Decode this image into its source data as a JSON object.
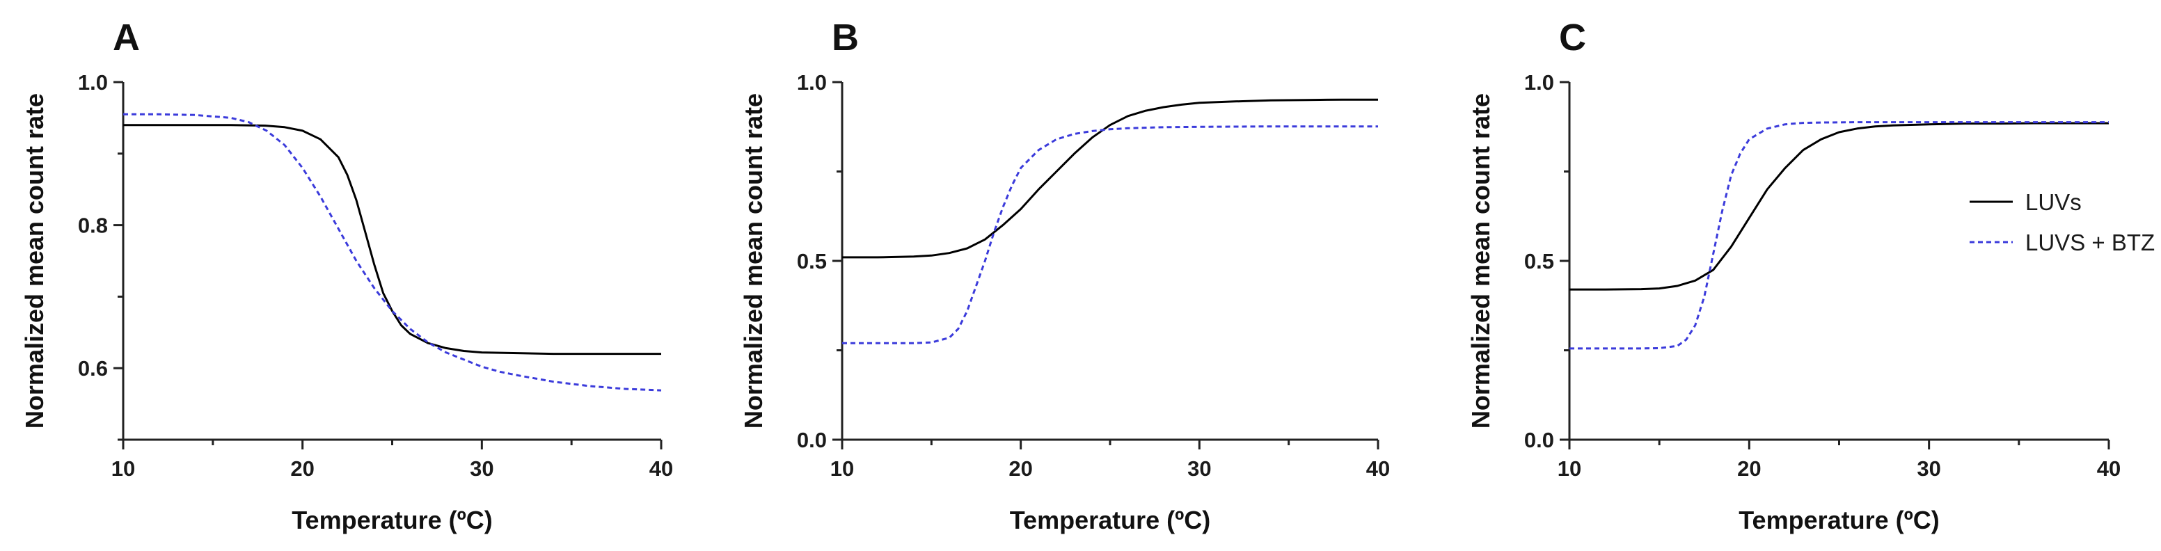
{
  "chart_data": [
    {
      "panel": "A",
      "type": "line",
      "xlabel": "Temperature (ºC)",
      "ylabel": "Normalized mean count rate",
      "xlim": [
        10,
        40
      ],
      "ylim": [
        0.5,
        1.0
      ],
      "xticks": [
        10,
        20,
        30,
        40
      ],
      "yticks": [
        0.6,
        0.8,
        1.0
      ],
      "ytick_labels": [
        "0.6",
        "0.8",
        "1.0"
      ],
      "xtick_labels": [
        "10",
        "20",
        "30",
        "40"
      ],
      "series": [
        {
          "name": "LUVs",
          "color": "#000000",
          "dash": "solid",
          "x": [
            10,
            12,
            14,
            16,
            18,
            19,
            20,
            21,
            22,
            22.5,
            23,
            23.5,
            24,
            24.5,
            25,
            25.5,
            26,
            27,
            28,
            29,
            30,
            32,
            34,
            36,
            38,
            40
          ],
          "y": [
            0.94,
            0.94,
            0.94,
            0.94,
            0.939,
            0.937,
            0.932,
            0.92,
            0.895,
            0.87,
            0.835,
            0.79,
            0.745,
            0.705,
            0.68,
            0.66,
            0.648,
            0.635,
            0.628,
            0.624,
            0.622,
            0.621,
            0.62,
            0.62,
            0.62,
            0.62
          ]
        },
        {
          "name": "LUVS + BTZ",
          "color": "#3b3bdb",
          "dash": "dashed",
          "x": [
            10,
            12,
            14,
            16,
            17,
            18,
            19,
            20,
            21,
            22,
            23,
            24,
            25,
            26,
            27,
            28,
            29,
            30,
            31,
            32,
            34,
            36,
            38,
            40
          ],
          "y": [
            0.955,
            0.955,
            0.954,
            0.95,
            0.944,
            0.932,
            0.912,
            0.88,
            0.84,
            0.795,
            0.75,
            0.712,
            0.68,
            0.655,
            0.636,
            0.622,
            0.612,
            0.602,
            0.595,
            0.59,
            0.581,
            0.575,
            0.571,
            0.569
          ]
        }
      ]
    },
    {
      "panel": "B",
      "type": "line",
      "xlabel": "Temperature (ºC)",
      "ylabel": "Normalized mean count rate",
      "xlim": [
        10,
        40
      ],
      "ylim": [
        0.0,
        1.0
      ],
      "xticks": [
        10,
        20,
        30,
        40
      ],
      "yticks": [
        0.0,
        0.5,
        1.0
      ],
      "ytick_labels": [
        "0.0",
        "0.5",
        "1.0"
      ],
      "xtick_labels": [
        "10",
        "20",
        "30",
        "40"
      ],
      "series": [
        {
          "name": "LUVs",
          "color": "#000000",
          "dash": "solid",
          "x": [
            10,
            12,
            14,
            15,
            16,
            17,
            18,
            19,
            20,
            21,
            22,
            23,
            24,
            25,
            26,
            27,
            28,
            29,
            30,
            32,
            34,
            36,
            38,
            40
          ],
          "y": [
            0.51,
            0.51,
            0.512,
            0.515,
            0.522,
            0.535,
            0.56,
            0.6,
            0.645,
            0.7,
            0.75,
            0.8,
            0.845,
            0.88,
            0.905,
            0.92,
            0.93,
            0.937,
            0.942,
            0.946,
            0.949,
            0.95,
            0.951,
            0.951
          ]
        },
        {
          "name": "LUVS + BTZ",
          "color": "#3b3bdb",
          "dash": "dashed",
          "x": [
            10,
            12,
            14,
            15,
            16,
            16.5,
            17,
            17.5,
            18,
            18.5,
            19,
            19.5,
            20,
            21,
            22,
            23,
            24,
            25,
            26,
            28,
            30,
            34,
            40
          ],
          "y": [
            0.27,
            0.27,
            0.27,
            0.272,
            0.285,
            0.31,
            0.36,
            0.43,
            0.5,
            0.58,
            0.65,
            0.71,
            0.76,
            0.81,
            0.84,
            0.855,
            0.863,
            0.868,
            0.871,
            0.874,
            0.875,
            0.876,
            0.876
          ]
        }
      ]
    },
    {
      "panel": "C",
      "type": "line",
      "xlabel": "Temperature (ºC)",
      "ylabel": "Normalized mean count rate",
      "xlim": [
        10,
        40
      ],
      "ylim": [
        0.0,
        1.0
      ],
      "xticks": [
        10,
        20,
        30,
        40
      ],
      "yticks": [
        0.0,
        0.5,
        1.0
      ],
      "ytick_labels": [
        "0.0",
        "0.5",
        "1.0"
      ],
      "xtick_labels": [
        "10",
        "20",
        "30",
        "40"
      ],
      "legend": "right",
      "series": [
        {
          "name": "LUVs",
          "color": "#000000",
          "dash": "solid",
          "x": [
            10,
            12,
            14,
            15,
            16,
            17,
            18,
            19,
            20,
            21,
            22,
            23,
            24,
            25,
            26,
            27,
            28,
            30,
            32,
            34,
            36,
            38,
            40
          ],
          "y": [
            0.42,
            0.42,
            0.421,
            0.423,
            0.43,
            0.445,
            0.475,
            0.54,
            0.62,
            0.7,
            0.76,
            0.81,
            0.84,
            0.86,
            0.87,
            0.876,
            0.879,
            0.882,
            0.884,
            0.884,
            0.885,
            0.885,
            0.885
          ]
        },
        {
          "name": "LUVS + BTZ",
          "color": "#3b3bdb",
          "dash": "dashed",
          "x": [
            10,
            12,
            14,
            15,
            16,
            16.5,
            17,
            17.5,
            18,
            18.5,
            19,
            19.5,
            20,
            21,
            22,
            23,
            24,
            26,
            30,
            35,
            40
          ],
          "y": [
            0.255,
            0.255,
            0.255,
            0.256,
            0.262,
            0.28,
            0.32,
            0.4,
            0.52,
            0.64,
            0.74,
            0.8,
            0.84,
            0.87,
            0.882,
            0.886,
            0.887,
            0.888,
            0.888,
            0.888,
            0.888
          ]
        }
      ]
    }
  ],
  "legend": {
    "items": [
      {
        "label": "LUVs",
        "color": "#000000",
        "dash": "solid"
      },
      {
        "label": "LUVS + BTZ",
        "color": "#3b3bdb",
        "dash": "dashed"
      }
    ]
  }
}
